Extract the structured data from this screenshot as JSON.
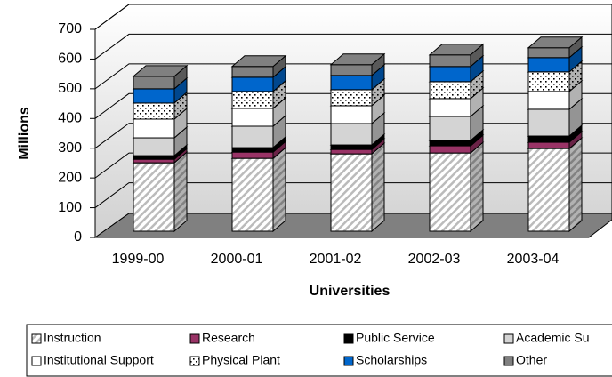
{
  "chart_data": {
    "type": "stacked-bar-3d",
    "y_label": "Millions",
    "x_label": "Universities",
    "categories": [
      "1999-00",
      "2000-01",
      "2001-02",
      "2002-03",
      "2003-04"
    ],
    "ylim": [
      0,
      700
    ],
    "yticks": [
      0,
      100,
      200,
      300,
      400,
      500,
      600,
      700
    ],
    "grid": true,
    "series": [
      {
        "name": "Instruction",
        "color": "#ffffff",
        "pattern": "diagonal",
        "values": [
          230,
          245,
          260,
          263,
          278
        ]
      },
      {
        "name": "Research",
        "color": "#993366",
        "values": [
          12,
          21,
          15,
          24,
          21
        ]
      },
      {
        "name": "Public Service",
        "color": "#000000",
        "values": [
          12,
          15,
          15,
          18,
          21
        ]
      },
      {
        "name": "Academic Su",
        "color": "#d4d4d4",
        "values": [
          60,
          72,
          72,
          81,
          90
        ]
      },
      {
        "name": "Institutional Support",
        "color": "#ffffff",
        "values": [
          63,
          60,
          60,
          60,
          60
        ]
      },
      {
        "name": "Physical Plant",
        "color": "#ffffff",
        "pattern": "dots",
        "values": [
          54,
          57,
          54,
          57,
          66
        ]
      },
      {
        "name": "Scholarships",
        "color": "#0066cc",
        "values": [
          48,
          48,
          48,
          51,
          48
        ]
      },
      {
        "name": "Other",
        "color": "#808080",
        "values": [
          42,
          36,
          36,
          39,
          33
        ]
      }
    ]
  }
}
